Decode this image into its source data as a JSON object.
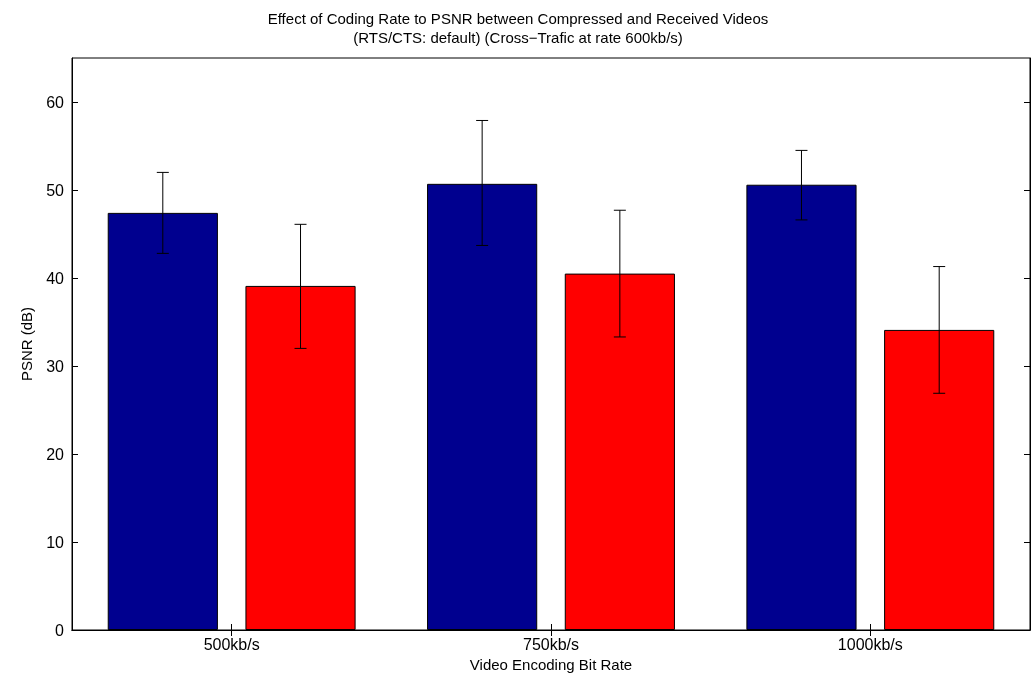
{
  "chart_data": {
    "type": "bar",
    "title": "Effect of Coding Rate to PSNR between Compressed and Received Videos",
    "subtitle": "(RTS/CTS: default) (Cross−Trafic at rate 600kb/s)",
    "xlabel": "Video Encoding Bit Rate",
    "ylabel": "PSNR (dB)",
    "categories": [
      "500kb/s",
      "750kb/s",
      "1000kb/s"
    ],
    "series": [
      {
        "color": "#00008f",
        "values": [
          47.4,
          50.7,
          50.6
        ],
        "errors": [
          [
            42.8,
            52.0
          ],
          [
            43.7,
            57.9
          ],
          [
            46.6,
            54.5
          ]
        ]
      },
      {
        "color": "#ff0000",
        "values": [
          39.1,
          40.5,
          34.1
        ],
        "errors": [
          [
            32.0,
            46.1
          ],
          [
            33.3,
            47.7
          ],
          [
            26.9,
            41.3
          ]
        ]
      }
    ],
    "ylim": [
      0,
      65
    ],
    "yticks": [
      0,
      10,
      20,
      30,
      40,
      50,
      60
    ],
    "grid": false
  }
}
